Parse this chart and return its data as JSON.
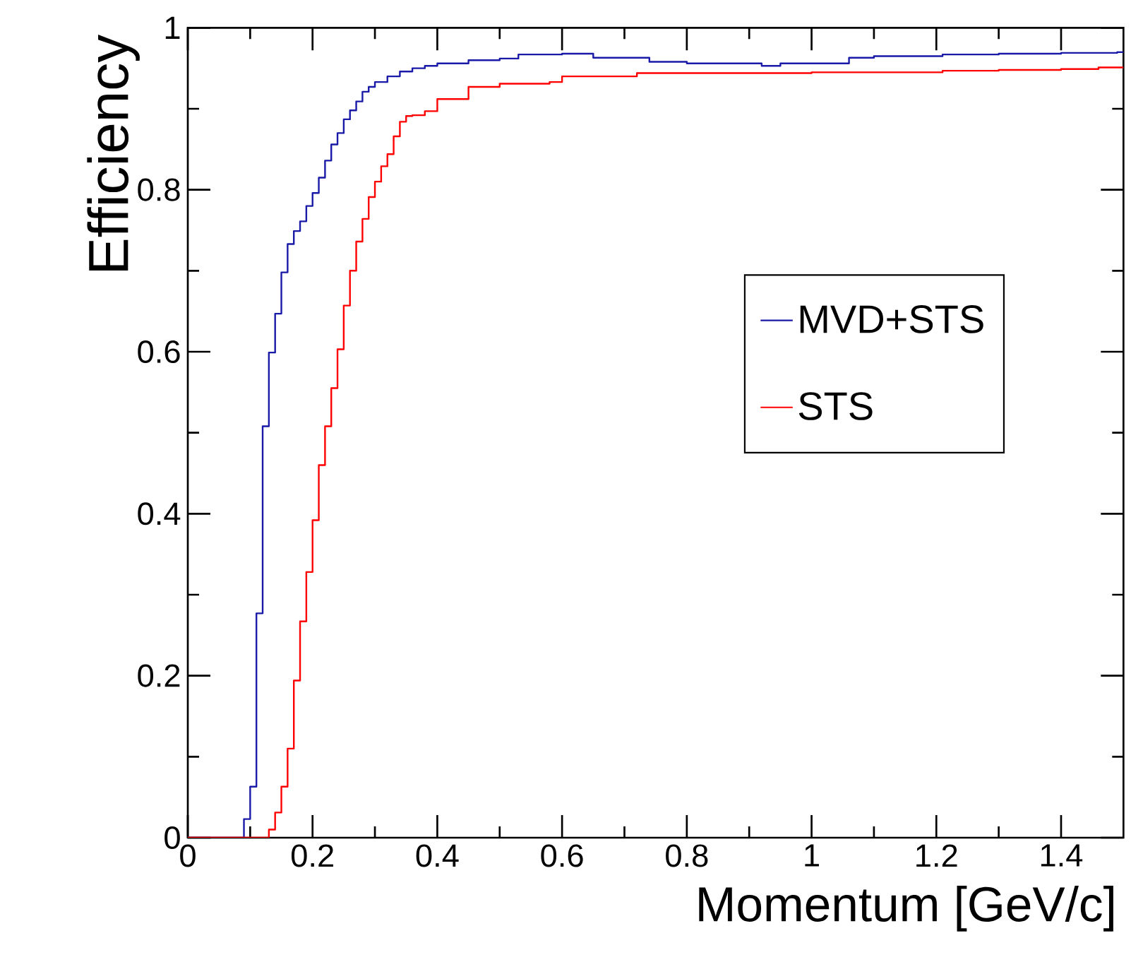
{
  "chart_data": {
    "type": "step",
    "xlabel": "Momentum [GeV/c]",
    "ylabel": "Efficiency",
    "xlim": [
      0,
      1.5
    ],
    "ylim": [
      0,
      1
    ],
    "xticks": [
      0,
      0.2,
      0.4,
      0.6,
      0.8,
      1,
      1.2,
      1.4
    ],
    "yticks": [
      0,
      0.2,
      0.4,
      0.6,
      0.8,
      1
    ],
    "grid": false,
    "legend": "right",
    "line_style": "solid",
    "marker": "none",
    "series": [
      {
        "name": "MVD+STS",
        "color": "#1a1aa8",
        "x": [
          0,
          0.09,
          0.1,
          0.11,
          0.12,
          0.13,
          0.14,
          0.15,
          0.16,
          0.17,
          0.18,
          0.19,
          0.2,
          0.21,
          0.22,
          0.23,
          0.24,
          0.25,
          0.26,
          0.27,
          0.28,
          0.29,
          0.3,
          0.32,
          0.34,
          0.36,
          0.38,
          0.4,
          0.45,
          0.5,
          0.53,
          0.6,
          0.65,
          0.74,
          0.8,
          0.92,
          0.95,
          1.06,
          1.1,
          1.21,
          1.3,
          1.4,
          1.49,
          1.5
        ],
        "values": [
          0,
          0.023,
          0.063,
          0.277,
          0.508,
          0.599,
          0.647,
          0.698,
          0.733,
          0.749,
          0.761,
          0.78,
          0.796,
          0.815,
          0.836,
          0.856,
          0.87,
          0.887,
          0.898,
          0.909,
          0.921,
          0.927,
          0.933,
          0.94,
          0.946,
          0.95,
          0.953,
          0.956,
          0.96,
          0.962,
          0.967,
          0.968,
          0.963,
          0.958,
          0.956,
          0.953,
          0.956,
          0.963,
          0.965,
          0.967,
          0.968,
          0.969,
          0.97,
          0.97
        ]
      },
      {
        "name": "STS",
        "color": "#ff0000",
        "x": [
          0,
          0.13,
          0.14,
          0.15,
          0.16,
          0.17,
          0.18,
          0.19,
          0.2,
          0.21,
          0.22,
          0.23,
          0.24,
          0.25,
          0.26,
          0.27,
          0.28,
          0.29,
          0.3,
          0.31,
          0.32,
          0.33,
          0.34,
          0.35,
          0.36,
          0.38,
          0.4,
          0.45,
          0.5,
          0.58,
          0.6,
          0.72,
          0.92,
          1.0,
          1.21,
          1.3,
          1.4,
          1.46,
          1.5
        ],
        "values": [
          0,
          0.01,
          0.031,
          0.063,
          0.11,
          0.194,
          0.267,
          0.328,
          0.392,
          0.46,
          0.508,
          0.555,
          0.603,
          0.657,
          0.7,
          0.736,
          0.764,
          0.791,
          0.81,
          0.829,
          0.844,
          0.866,
          0.884,
          0.891,
          0.892,
          0.897,
          0.912,
          0.927,
          0.931,
          0.933,
          0.94,
          0.944,
          0.944,
          0.945,
          0.947,
          0.948,
          0.949,
          0.951,
          0.951
        ]
      }
    ]
  }
}
